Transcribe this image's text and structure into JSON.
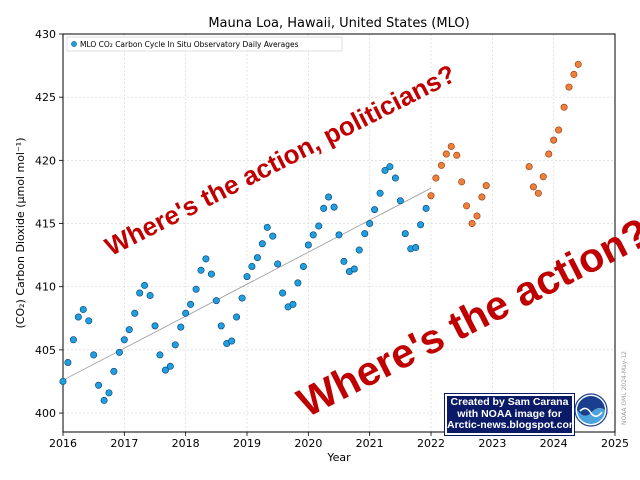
{
  "chart_data": {
    "type": "scatter",
    "title": "Mauna Loa, Hawaii, United States (MLO)",
    "xlabel": "Year",
    "ylabel": "(CO₂) Carbon Dioxide (μmol mol⁻¹)",
    "xlim": [
      2016,
      2025
    ],
    "ylim": [
      398.5,
      430
    ],
    "grid": true,
    "legend_position": "top-left",
    "x_ticks": [
      "2016",
      "2017",
      "2018",
      "2019",
      "2020",
      "2021",
      "2022",
      "2023",
      "2024",
      "2025"
    ],
    "y_ticks": [
      "400",
      "405",
      "410",
      "415",
      "420",
      "425",
      "430"
    ],
    "series": [
      {
        "name": "MLO CO₂ Carbon Cycle In Situ Observatory Daily Averages",
        "color": "#1f9fe0",
        "x": [
          2016.0,
          2016.08,
          2016.17,
          2016.25,
          2016.33,
          2016.42,
          2016.5,
          2016.58,
          2016.67,
          2016.75,
          2016.83,
          2016.92,
          2017.0,
          2017.08,
          2017.17,
          2017.25,
          2017.33,
          2017.42,
          2017.5,
          2017.58,
          2017.67,
          2017.75,
          2017.83,
          2017.92,
          2018.0,
          2018.08,
          2018.17,
          2018.25,
          2018.33,
          2018.42,
          2018.5,
          2018.58,
          2018.67,
          2018.75,
          2018.83,
          2018.92,
          2019.0,
          2019.08,
          2019.17,
          2019.25,
          2019.33,
          2019.42,
          2019.5,
          2019.58,
          2019.67,
          2019.75,
          2019.83,
          2019.92,
          2020.0,
          2020.08,
          2020.17,
          2020.25,
          2020.33,
          2020.42,
          2020.5,
          2020.58,
          2020.67,
          2020.75,
          2020.83,
          2020.92,
          2021.0,
          2021.08,
          2021.17,
          2021.25,
          2021.33,
          2021.42,
          2021.5,
          2021.58,
          2021.67,
          2021.75,
          2021.83,
          2021.92
        ],
        "y": [
          402.5,
          404.0,
          405.8,
          407.6,
          408.2,
          407.3,
          404.6,
          402.2,
          401.0,
          401.6,
          403.3,
          404.8,
          405.8,
          406.6,
          407.9,
          409.5,
          410.1,
          409.3,
          406.9,
          404.6,
          403.4,
          403.7,
          405.4,
          406.8,
          407.9,
          408.6,
          409.8,
          411.3,
          412.2,
          411.0,
          408.9,
          406.9,
          405.5,
          405.7,
          407.6,
          409.1,
          410.8,
          411.6,
          412.3,
          413.4,
          414.7,
          414.0,
          411.8,
          409.5,
          408.4,
          408.6,
          410.3,
          411.6,
          413.3,
          414.1,
          414.8,
          416.2,
          417.1,
          416.3,
          414.1,
          412.0,
          411.2,
          411.4,
          412.9,
          414.2,
          415.0,
          416.1,
          417.4,
          419.2,
          419.5,
          418.6,
          416.8,
          414.2,
          413.0,
          413.1,
          414.9,
          416.2
        ]
      },
      {
        "name": "",
        "color": "#f07f3a",
        "x": [
          2022.0,
          2022.08,
          2022.17,
          2022.25,
          2022.33,
          2022.42,
          2022.5,
          2022.58,
          2022.67,
          2022.75,
          2022.83,
          2022.9,
          2023.6,
          2023.67,
          2023.75,
          2023.83,
          2023.92,
          2024.0,
          2024.08,
          2024.17,
          2024.25,
          2024.33,
          2024.4
        ],
        "y": [
          417.2,
          418.6,
          419.6,
          420.5,
          421.1,
          420.4,
          418.3,
          416.4,
          415.0,
          415.6,
          417.1,
          418.0,
          419.5,
          417.9,
          417.4,
          418.7,
          420.5,
          421.6,
          422.4,
          424.2,
          425.8,
          426.8,
          427.6
        ]
      }
    ],
    "trend_line": {
      "x": [
        2016.0,
        2022.0
      ],
      "y": [
        402.6,
        417.8
      ]
    }
  },
  "annotations": {
    "politicians": "Where's the action, politicians?",
    "action": "Where's the action?"
  },
  "credit": {
    "line1": "Created by Sam Carana",
    "line2": "with NOAA image for",
    "line3": "Arctic-news.blogspot.com"
  },
  "logo": {
    "label": "NOAA"
  },
  "watermark": "NOAA GML 2024-May-12"
}
